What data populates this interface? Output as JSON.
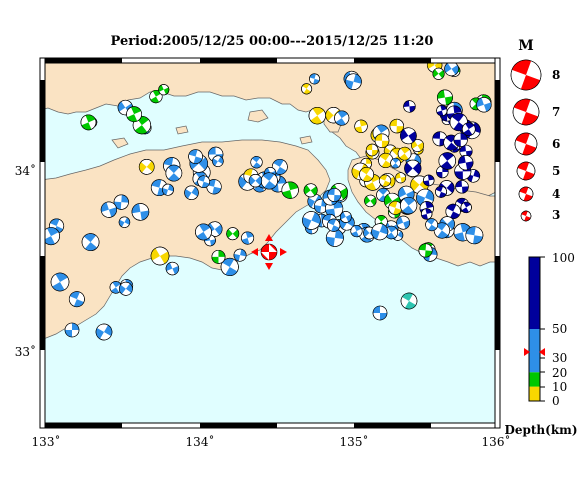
{
  "title": "Period:2005/12/25 00:00---2015/12/25 11:20",
  "map": {
    "lon_ticks": [
      "133˚",
      "134˚",
      "135˚",
      "136˚"
    ],
    "lat_ticks": [
      "34˚",
      "33˚"
    ],
    "colors": {
      "land": "#fae3c3",
      "sea": "#e0feff",
      "coast": "#666666"
    }
  },
  "magnitude_legend": {
    "heading": "M",
    "labels": [
      "8",
      "7",
      "6",
      "5",
      "4",
      "3"
    ],
    "color": "#ff0000"
  },
  "depth_legend": {
    "tick_labels": [
      "100",
      "50",
      "30",
      "20",
      "10",
      "0"
    ],
    "axis_label": "Depth(km)",
    "bands": [
      {
        "from": 0,
        "to": 10,
        "color": "#f8d700"
      },
      {
        "from": 10,
        "to": 20,
        "color": "#00c800"
      },
      {
        "from": 20,
        "to": 50,
        "color": "#2e8fe8"
      },
      {
        "from": 50,
        "to": 100,
        "color": "#00009c"
      }
    ],
    "highlight_depth_km": 34
  },
  "main_event": {
    "color": "#ff0000",
    "marker": "red-triangle-icon"
  },
  "focal_color_key": {
    "shallow": "#f8d700",
    "mid": "#00c800",
    "medium": "#2e8fe8",
    "deep": "#00009c"
  }
}
